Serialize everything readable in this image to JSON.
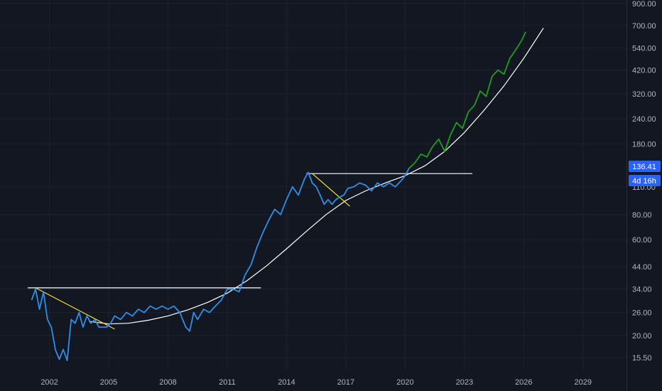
{
  "colors": {
    "background": "#131722",
    "grid": "#1e2230",
    "axis_text": "#b2b5be",
    "price_line": "#2f8fe8",
    "projection_line": "#1e9e1e",
    "trend_curve": "#ffffff",
    "resistance": "#ffffff",
    "downtrend": "#f2e33c",
    "badge": "#2962ff"
  },
  "price_badge": {
    "value": "136.41",
    "countdown": "4d 16h"
  },
  "chart_data": {
    "type": "line",
    "y_scale": "log",
    "xlim": [
      1999.5,
      2031.2
    ],
    "ylim": [
      13.5,
      900
    ],
    "grid": true,
    "x_ticks": [
      "2002",
      "2005",
      "2008",
      "2011",
      "2014",
      "2017",
      "2020",
      "2023",
      "2026",
      "2029"
    ],
    "y_ticks": [
      "900.00",
      "700.00",
      "540.00",
      "420.00",
      "320.00",
      "240.00",
      "180.00",
      "110.00",
      "80.00",
      "60.00",
      "44.00",
      "34.00",
      "26.00",
      "20.00",
      "15.50"
    ],
    "series": [
      {
        "style": "history",
        "x": [
          2001.1,
          2001.3,
          2001.5,
          2001.7,
          2001.9,
          2002.1,
          2002.3,
          2002.5,
          2002.7,
          2002.9,
          2003.1,
          2003.3,
          2003.5,
          2003.7,
          2003.9,
          2004.1,
          2004.3,
          2004.5,
          2004.7,
          2004.9,
          2005.1,
          2005.3,
          2005.6,
          2005.9,
          2006.2,
          2006.5,
          2006.8,
          2007.1,
          2007.4,
          2007.7,
          2008.0,
          2008.3,
          2008.6,
          2008.9,
          2009.1,
          2009.3,
          2009.5,
          2009.8,
          2010.1,
          2010.4,
          2010.7,
          2011.0,
          2011.3,
          2011.6,
          2011.9,
          2012.2,
          2012.5,
          2012.8,
          2013.1,
          2013.4,
          2013.7,
          2014.0,
          2014.3,
          2014.6,
          2014.9,
          2015.1,
          2015.3,
          2015.5,
          2015.7,
          2015.9,
          2016.1,
          2016.3,
          2016.5,
          2016.7,
          2016.9,
          2017.1,
          2017.4,
          2017.7,
          2018.0,
          2018.3,
          2018.6,
          2018.9,
          2019.2,
          2019.5,
          2019.8,
          2020.0,
          2020.2
        ],
        "y": [
          30,
          34,
          27,
          33,
          24,
          22,
          17,
          15.2,
          17,
          15,
          24,
          23,
          26,
          22,
          25,
          23,
          24,
          22,
          22,
          22,
          23,
          25,
          24,
          26,
          25,
          27,
          26,
          28,
          27,
          28,
          27,
          28,
          26,
          22,
          21,
          26,
          24,
          27,
          26,
          28,
          30,
          34,
          34,
          33,
          40,
          45,
          55,
          65,
          75,
          85,
          80,
          95,
          110,
          100,
          120,
          130,
          115,
          110,
          100,
          90,
          95,
          90,
          95,
          98,
          100,
          108,
          110,
          115,
          112,
          105,
          115,
          110,
          115,
          110,
          118,
          125,
          136
        ]
      },
      {
        "style": "projection",
        "x": [
          2020.2,
          2020.5,
          2020.8,
          2021.1,
          2021.4,
          2021.7,
          2022.0,
          2022.3,
          2022.6,
          2022.9,
          2023.2,
          2023.5,
          2023.8,
          2024.1,
          2024.4,
          2024.7,
          2025.0,
          2025.3,
          2025.6,
          2025.9,
          2026.1
        ],
        "y": [
          136,
          145,
          160,
          155,
          175,
          190,
          165,
          200,
          230,
          215,
          260,
          280,
          330,
          310,
          390,
          420,
          400,
          480,
          530,
          590,
          650
        ]
      }
    ],
    "annotations": {
      "trend_curve": {
        "x": [
          2004.0,
          2005.0,
          2006.0,
          2007.0,
          2008.0,
          2009.0,
          2010.0,
          2011.0,
          2012.0,
          2013.0,
          2014.0,
          2015.0,
          2016.0,
          2017.0,
          2018.0,
          2019.0,
          2020.0,
          2021.0,
          2022.0,
          2023.0,
          2024.0,
          2025.0,
          2026.0,
          2027.0
        ],
        "y": [
          23.5,
          22.8,
          23.0,
          23.8,
          25.0,
          26.8,
          29.2,
          32.5,
          37.5,
          44.5,
          54.0,
          66.0,
          80.0,
          94.0,
          105.0,
          115.0,
          125.0,
          140.0,
          165.0,
          205.0,
          265.0,
          350.0,
          480.0,
          680.0
        ]
      },
      "resistance_lines": [
        {
          "x": [
            2000.9,
            2012.7
          ],
          "y": [
            34.5,
            34.5
          ]
        },
        {
          "x": [
            2015.0,
            2023.4
          ],
          "y": [
            128,
            128
          ]
        }
      ],
      "downtrend_lines": [
        {
          "x": [
            2001.3,
            2005.3
          ],
          "y": [
            34.5,
            21.5
          ]
        },
        {
          "x": [
            2015.3,
            2017.2
          ],
          "y": [
            128,
            88
          ]
        }
      ]
    }
  }
}
